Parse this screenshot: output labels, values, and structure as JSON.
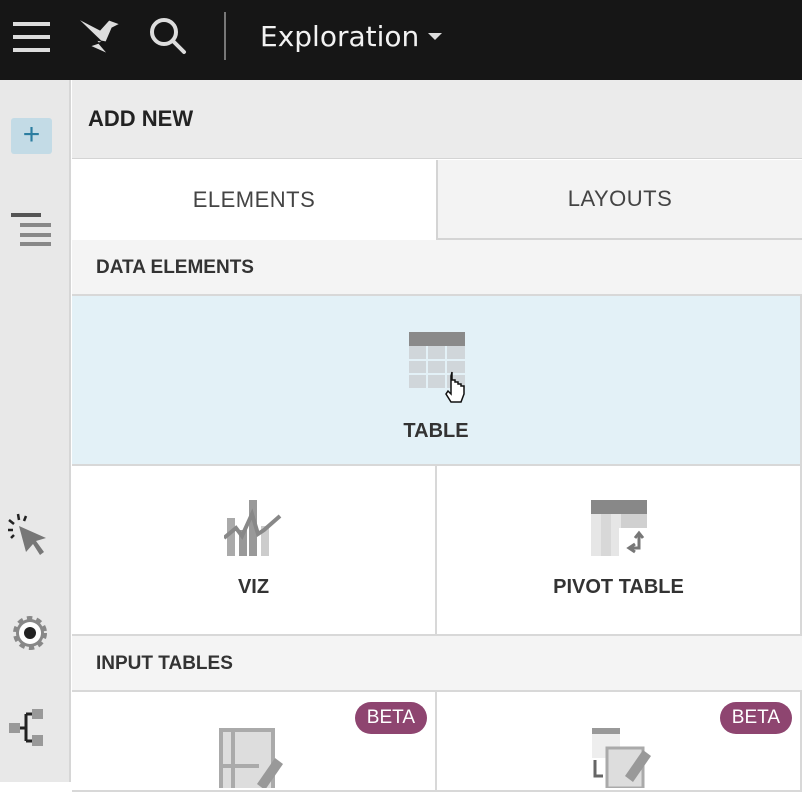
{
  "topbar": {
    "title": "Exploration",
    "icons": [
      "menu-icon",
      "logo-icon",
      "search-icon",
      "caret-down-icon"
    ]
  },
  "sidebar": {
    "icons": [
      "add-icon",
      "outline-icon",
      "interaction-icon",
      "settings-icon",
      "lineage-icon"
    ],
    "accent": "#2b7da0"
  },
  "panel": {
    "header": "ADD NEW",
    "tabs": [
      {
        "label": "ELEMENTS",
        "active": true
      },
      {
        "label": "LAYOUTS",
        "active": false
      }
    ],
    "sections": [
      {
        "title": "DATA ELEMENTS",
        "items": [
          {
            "label": "TABLE",
            "hovered": true
          },
          {
            "label": "VIZ"
          },
          {
            "label": "PIVOT TABLE"
          }
        ]
      },
      {
        "title": "INPUT TABLES",
        "items": [
          {
            "badge": "BETA"
          },
          {
            "badge": "BETA"
          }
        ]
      }
    ]
  },
  "colors": {
    "badge": "#8e4570",
    "hover": "#e3f1f7"
  }
}
